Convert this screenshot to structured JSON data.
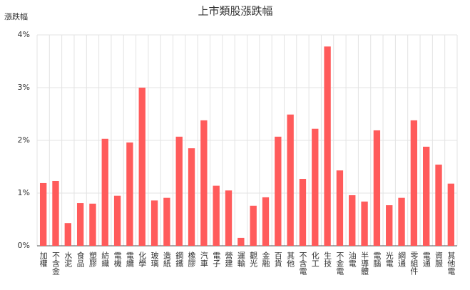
{
  "chart_data": {
    "type": "bar",
    "title": "上市類股漲跌幅",
    "y_label": "漲跌幅",
    "categories": [
      "加權",
      "不含金",
      "水泥",
      "食品",
      "塑膠",
      "紡織",
      "電機",
      "電纜",
      "化學",
      "玻璃",
      "造紙",
      "鋼鐵",
      "橡膠",
      "汽車",
      "電子",
      "營建",
      "運輸",
      "觀光",
      "金融",
      "百貨",
      "其他",
      "不含電",
      "化工",
      "生技",
      "不金電",
      "油電",
      "半導體",
      "電腦",
      "光電",
      "網通",
      "零組件",
      "電通",
      "資服",
      "其他電"
    ],
    "values": [
      1.19,
      1.23,
      0.43,
      0.81,
      0.8,
      2.03,
      0.95,
      1.96,
      3.0,
      0.86,
      0.91,
      2.07,
      1.85,
      2.38,
      1.14,
      1.05,
      0.15,
      0.76,
      0.92,
      2.07,
      2.49,
      1.27,
      2.22,
      3.78,
      1.43,
      0.96,
      0.84,
      2.19,
      0.77,
      0.91,
      2.38,
      1.88,
      1.54,
      1.18
    ],
    "color": "#ff5b5b",
    "ylim": [
      0,
      4
    ],
    "yticks": [
      {
        "value": 0,
        "label": "0%"
      },
      {
        "value": 1,
        "label": "1%"
      },
      {
        "value": 2,
        "label": "2%"
      },
      {
        "value": 3,
        "label": "3%"
      },
      {
        "value": 4,
        "label": "4%"
      }
    ],
    "grid": true
  }
}
